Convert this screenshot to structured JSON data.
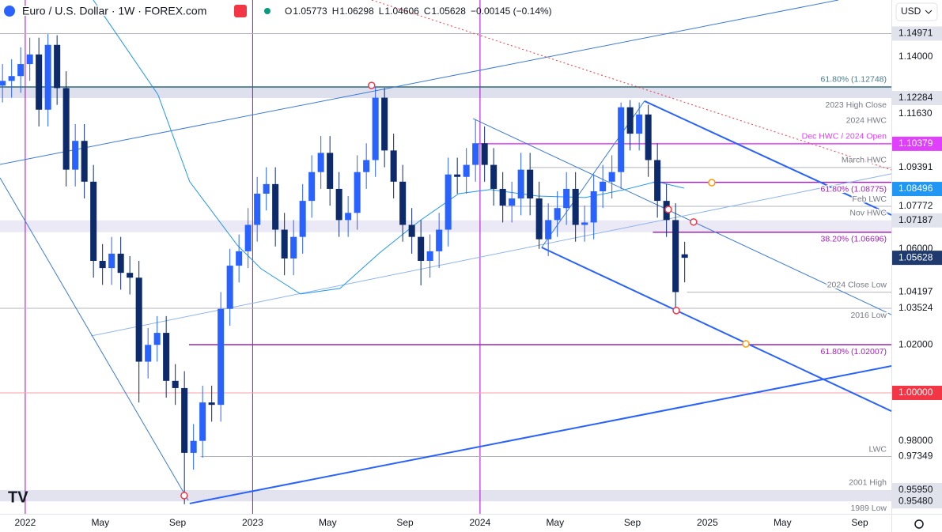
{
  "header": {
    "title": "Euro / U.S. Dollar · 1W · FOREX.com",
    "ohlc": [
      {
        "key": "O",
        "value": 1.05773
      },
      {
        "key": "H",
        "value": 1.06298
      },
      {
        "key": "L",
        "value": 1.04606
      },
      {
        "key": "C",
        "value": 1.05628
      }
    ],
    "change": "−0.00145 (−0.14%)",
    "currency": "USD"
  },
  "chart_data": {
    "type": "candlestick",
    "xlim": [
      2021.889,
      2025.809
    ],
    "ylim": [
      0.9496,
      1.1637
    ],
    "xticks": [
      2022,
      {
        "value": 2022.33,
        "label": "May"
      },
      {
        "value": 2022.67,
        "label": "Sep"
      },
      2023,
      {
        "value": 2023.33,
        "label": "May"
      },
      {
        "value": 2023.67,
        "label": "Sep"
      },
      2024,
      {
        "value": 2024.33,
        "label": "May"
      },
      {
        "value": 2024.67,
        "label": "Sep"
      },
      2025,
      {
        "value": 2025.33,
        "label": "May"
      },
      {
        "value": 2025.67,
        "label": "Sep"
      }
    ],
    "up_color": "#2962ff",
    "down_color": "#0d2a6b",
    "x": [
      2021.9,
      2021.94,
      2021.98,
      2022.02,
      2022.06,
      2022.1,
      2022.14,
      2022.18,
      2022.22,
      2022.26,
      2022.3,
      2022.34,
      2022.38,
      2022.42,
      2022.46,
      2022.5,
      2022.54,
      2022.58,
      2022.62,
      2022.66,
      2022.7,
      2022.74,
      2022.78,
      2022.82,
      2022.86,
      2022.9,
      2022.94,
      2022.98,
      2023.02,
      2023.06,
      2023.1,
      2023.14,
      2023.18,
      2023.22,
      2023.26,
      2023.3,
      2023.34,
      2023.38,
      2023.42,
      2023.46,
      2023.5,
      2023.54,
      2023.58,
      2023.62,
      2023.66,
      2023.7,
      2023.74,
      2023.78,
      2023.82,
      2023.86,
      2023.9,
      2023.94,
      2023.98,
      2024.02,
      2024.06,
      2024.1,
      2024.14,
      2024.18,
      2024.22,
      2024.26,
      2024.3,
      2024.34,
      2024.38,
      2024.42,
      2024.46,
      2024.5,
      2024.54,
      2024.58,
      2024.62,
      2024.66,
      2024.7,
      2024.74,
      2024.78,
      2024.82,
      2024.86,
      2024.9
    ],
    "open": [
      1.128,
      1.13,
      1.132,
      1.137,
      1.141,
      1.118,
      1.145,
      1.127,
      1.093,
      1.105,
      1.088,
      1.055,
      1.052,
      1.058,
      1.05,
      1.048,
      1.013,
      1.02,
      1.025,
      1.005,
      1.002,
      0.975,
      0.98,
      0.996,
      0.995,
      1.035,
      1.053,
      1.059,
      1.07,
      1.083,
      1.087,
      1.068,
      1.056,
      1.065,
      1.08,
      1.092,
      1.1,
      1.085,
      1.072,
      1.075,
      1.092,
      1.097,
      1.123,
      1.101,
      1.088,
      1.07,
      1.065,
      1.055,
      1.059,
      1.068,
      1.091,
      1.09,
      1.095,
      1.104,
      1.095,
      1.085,
      1.078,
      1.081,
      1.093,
      1.081,
      1.064,
      1.072,
      1.077,
      1.085,
      1.07,
      1.071,
      1.084,
      1.088,
      1.092,
      1.119,
      1.108,
      1.116,
      1.097,
      1.08,
      1.072,
      1.05773
    ],
    "high": [
      1.137,
      1.139,
      1.144,
      1.148,
      1.148,
      1.1495,
      1.149,
      1.134,
      1.112,
      1.112,
      1.095,
      1.062,
      1.065,
      1.065,
      1.057,
      1.055,
      1.027,
      1.032,
      1.032,
      1.012,
      1.009,
      0.987,
      1.003,
      1.003,
      1.042,
      1.06,
      1.066,
      1.077,
      1.09,
      1.094,
      1.094,
      1.075,
      1.072,
      1.087,
      1.099,
      1.107,
      1.107,
      1.092,
      1.082,
      1.099,
      1.104,
      1.1276,
      1.127,
      1.108,
      1.095,
      1.077,
      1.072,
      1.066,
      1.075,
      1.098,
      1.098,
      1.102,
      1.114,
      1.111,
      1.102,
      1.092,
      1.088,
      1.1,
      1.1,
      1.088,
      1.079,
      1.084,
      1.092,
      1.092,
      1.078,
      1.091,
      1.095,
      1.099,
      1.121,
      1.122,
      1.121,
      1.12,
      1.104,
      1.087,
      1.079,
      1.06298
    ],
    "low": [
      1.121,
      1.123,
      1.125,
      1.13,
      1.111,
      1.111,
      1.12,
      1.086,
      1.086,
      1.081,
      1.048,
      1.045,
      1.045,
      1.043,
      1.041,
      0.996,
      1.006,
      1.013,
      0.998,
      0.995,
      0.9536,
      0.968,
      0.973,
      0.988,
      0.988,
      1.028,
      1.046,
      1.052,
      1.063,
      1.076,
      1.061,
      1.049,
      1.049,
      1.058,
      1.073,
      1.085,
      1.078,
      1.065,
      1.065,
      1.068,
      1.085,
      1.09,
      1.094,
      1.081,
      1.063,
      1.058,
      1.0448,
      1.048,
      1.052,
      1.061,
      1.083,
      1.083,
      1.088,
      1.088,
      1.078,
      1.071,
      1.071,
      1.074,
      1.074,
      1.06,
      1.057,
      1.065,
      1.07,
      1.063,
      1.063,
      1.064,
      1.077,
      1.081,
      1.085,
      1.101,
      1.101,
      1.09,
      1.073,
      1.065,
      1.0335,
      1.04606
    ],
    "close": [
      1.13,
      1.132,
      1.137,
      1.141,
      1.118,
      1.145,
      1.127,
      1.093,
      1.105,
      1.088,
      1.055,
      1.052,
      1.058,
      1.05,
      1.048,
      1.013,
      1.02,
      1.025,
      1.005,
      1.002,
      0.975,
      0.98,
      0.996,
      0.995,
      1.035,
      1.053,
      1.059,
      1.07,
      1.083,
      1.087,
      1.068,
      1.056,
      1.065,
      1.08,
      1.092,
      1.1,
      1.085,
      1.072,
      1.075,
      1.092,
      1.097,
      1.123,
      1.101,
      1.088,
      1.07,
      1.065,
      1.055,
      1.059,
      1.068,
      1.091,
      1.09,
      1.095,
      1.104,
      1.095,
      1.085,
      1.078,
      1.081,
      1.093,
      1.081,
      1.064,
      1.072,
      1.077,
      1.085,
      1.07,
      1.071,
      1.084,
      1.088,
      1.092,
      1.119,
      1.108,
      1.116,
      1.097,
      1.08,
      1.072,
      1.042,
      1.05628
    ],
    "ma": {
      "color": "#2196f3",
      "x": [
        2022.299,
        2022.584,
        2022.723,
        2022.932,
        2023.037,
        2023.21,
        2023.384,
        2023.558,
        2023.732,
        2023.906,
        2024.045,
        2024.254,
        2024.463,
        2024.637,
        2024.776,
        2024.897
      ],
      "values": [
        1.1637,
        1.1242,
        1.088,
        1.0616,
        1.0517,
        1.0412,
        1.0435,
        1.0583,
        1.0715,
        1.083,
        1.0847,
        1.082,
        1.0814,
        1.0847,
        1.088,
        1.0853
      ]
    },
    "bands": [
      {
        "range": [
          1.12284,
          1.12748
        ],
        "color": "#d6d8ea"
      },
      {
        "range": [
          1.06696,
          1.07187
        ],
        "color": "#e6e3f2"
      },
      {
        "range": [
          0.9548,
          0.9595
        ],
        "color": "#dcdcec"
      }
    ],
    "lines": [
      {
        "value": 1.14971,
        "from": 2021.889,
        "color": "#b2b5be",
        "width": 1
      },
      {
        "value": 1.12748,
        "from": 2021.889,
        "color": "#2e6b74",
        "width": 1.5
      },
      {
        "value": 1.10379,
        "from": 2023.99,
        "color": "#e040fb",
        "width": 1.5
      },
      {
        "value": 1.09391,
        "from": 2024.22,
        "color": "#b2b5be",
        "width": 1
      },
      {
        "value": 1.08775,
        "from": 2024.76,
        "color": "#9c27b0",
        "width": 1.5
      },
      {
        "value": 1.07772,
        "from": 2024.11,
        "color": "#b2b5be",
        "width": 1
      },
      {
        "value": 1.06696,
        "from": 2024.76,
        "color": "#9c27b0",
        "width": 1.5
      },
      {
        "value": 1.04197,
        "from": 2024.91,
        "color": "#b2b5be",
        "width": 1
      },
      {
        "value": 1.03524,
        "from": 2021.889,
        "color": "#b2b5be",
        "width": 1
      },
      {
        "value": 1.02007,
        "from": 2022.72,
        "color": "#9c27b0",
        "width": 1.5
      },
      {
        "value": 1.0,
        "from": 2021.889,
        "color": "#f7a1a8",
        "width": 1
      },
      {
        "value": 0.97349,
        "from": 2022.77,
        "color": "#b2b5be",
        "width": 1
      }
    ],
    "vlines": {
      "values": [
        2022,
        2023,
        2024
      ],
      "color": "#b000d8"
    },
    "trendlines": [
      {
        "points": [
          [
            2022.723,
            0.9539
          ],
          [
            2025.809,
            1.0112
          ]
        ],
        "color": "#2962ff",
        "width": 2,
        "dash": null
      },
      {
        "points": [
          [
            2021.889,
            1.0952
          ],
          [
            2025.576,
            1.1637
          ]
        ],
        "color": "#3d7ad6",
        "width": 1,
        "dash": null
      },
      {
        "points": [
          [
            2024.723,
            1.1216
          ],
          [
            2025.809,
            1.0741
          ]
        ],
        "color": "#2962ff",
        "width": 2,
        "dash": null
      },
      {
        "points": [
          [
            2024.271,
            1.0606
          ],
          [
            2025.809,
            0.9924
          ]
        ],
        "color": "#2962ff",
        "width": 2,
        "dash": null
      },
      {
        "points": [
          [
            2023.969,
            1.1143
          ],
          [
            2025.809,
            1.0326
          ]
        ],
        "color": "#3d7ad6",
        "width": 1,
        "dash": null
      },
      {
        "points": [
          [
            2022.289,
            1.0237
          ],
          [
            2025.809,
            1.0913
          ]
        ],
        "color": "#90b4ec",
        "width": 1,
        "dash": null
      },
      {
        "points": [
          [
            2021.889,
            1.0896
          ],
          [
            2022.717,
            0.9552
          ]
        ],
        "color": "#3d7ad6",
        "width": 1,
        "dash": null
      },
      {
        "points": [
          [
            2023.524,
            1.1637
          ],
          [
            2025.809,
            1.0929
          ]
        ],
        "color": "#f23645",
        "width": 1,
        "dash": "2 3"
      },
      {
        "points": [
          [
            2024.271,
            1.0606
          ],
          [
            2024.723,
            1.1216
          ]
        ],
        "color": "#3d7ad6",
        "width": 1,
        "dash": null
      }
    ],
    "markers": [
      {
        "x": 2023.523,
        "value": 1.1281,
        "color": "#f23645"
      },
      {
        "x": 2024.828,
        "value": 1.0764,
        "color": "#f23645"
      },
      {
        "x": 2024.939,
        "value": 1.0712,
        "color": "#f23645"
      },
      {
        "x": 2024.863,
        "value": 1.0343,
        "color": "#f23645"
      },
      {
        "x": 2022.699,
        "value": 0.9572,
        "color": "#f23645"
      },
      {
        "x": 2025.019,
        "value": 1.0876,
        "color": "#ff9800"
      },
      {
        "x": 2025.169,
        "value": 1.0204,
        "color": "#ff9800"
      }
    ],
    "notes": [
      {
        "text": "61.80% (1.12748)",
        "value": 1.12748,
        "side": "above",
        "color": "#4a7a8c"
      },
      {
        "text": "2023 High Close",
        "value": 1.12284,
        "side": "below",
        "color": "#787b86"
      },
      {
        "text": "2024 HWC",
        "value": 1.1163,
        "side": "below",
        "color": "#787b86"
      },
      {
        "text": "Dec HWC / 2024 Open",
        "value": 1.10379,
        "side": "above",
        "color": "#e040fb"
      },
      {
        "text": "March HWC",
        "value": 1.09391,
        "side": "above",
        "color": "#787b86"
      },
      {
        "text": "61.80% (1.08775)",
        "value": 1.08775,
        "side": "below",
        "color": "#9c27b0"
      },
      {
        "text": "Feb LWC",
        "value": 1.07772,
        "side": "above",
        "color": "#787b86"
      },
      {
        "text": "Nov HWC",
        "value": 1.07187,
        "side": "above",
        "color": "#787b86"
      },
      {
        "text": "38.20% (1.06696)",
        "value": 1.06696,
        "side": "below",
        "color": "#9c27b0"
      },
      {
        "text": "2024 Close Low",
        "value": 1.04197,
        "side": "above",
        "color": "#787b86"
      },
      {
        "text": "2016 Low",
        "value": 1.03524,
        "side": "below",
        "color": "#787b86"
      },
      {
        "text": "61.80% (1.02007)",
        "value": 1.02007,
        "side": "below",
        "color": "#9c27b0"
      },
      {
        "text": "LWC",
        "value": 0.97349,
        "side": "above",
        "color": "#787b86"
      },
      {
        "text": "2001 High",
        "value": 0.9595,
        "side": "above",
        "color": "#787b86"
      },
      {
        "text": "1989 Low",
        "value": 0.9548,
        "side": "below",
        "color": "#787b86"
      }
    ],
    "levels": [
      {
        "value": 1.14971,
        "box": "#e0e3eb",
        "fg": "#131722"
      },
      {
        "value": 1.14,
        "label": "1.14000",
        "box": null,
        "fg": "#131722"
      },
      {
        "value": 1.12284,
        "box": "#e0e3eb",
        "fg": "#131722"
      },
      {
        "value": 1.1163,
        "label": "1.11630",
        "box": null,
        "fg": "#131722"
      },
      {
        "value": 1.10379,
        "box": "#e040fb",
        "fg": "#ffffff"
      },
      {
        "value": 1.09391,
        "box": null,
        "fg": "#131722"
      },
      {
        "value": 1.08496,
        "box": "#2196f3",
        "fg": "#ffffff"
      },
      {
        "value": 1.07772,
        "box": null,
        "fg": "#131722"
      },
      {
        "value": 1.07187,
        "box": "#e0e3eb",
        "fg": "#131722"
      },
      {
        "value": 1.06,
        "label": "1.06000",
        "box": null,
        "fg": "#131722"
      },
      {
        "value": 1.05628,
        "box": "#1e3a6e",
        "fg": "#ffffff"
      },
      {
        "value": 1.04197,
        "box": null,
        "fg": "#131722"
      },
      {
        "value": 1.03524,
        "box": null,
        "fg": "#131722"
      },
      {
        "value": 1.02,
        "label": "1.02000",
        "box": null,
        "fg": "#131722"
      },
      {
        "value": 1.0,
        "label": "1.00000",
        "box": "#f23645",
        "fg": "#ffffff"
      },
      {
        "value": 0.98,
        "label": "0.98000",
        "box": null,
        "fg": "#131722"
      },
      {
        "value": 0.97349,
        "box": null,
        "fg": "#131722"
      },
      {
        "value": 0.9595,
        "label": "0.95950",
        "box": "#e0e3eb",
        "fg": "#131722"
      },
      {
        "value": 0.9548,
        "label": "0.95480",
        "box": "#e0e3eb",
        "fg": "#131722"
      }
    ]
  }
}
